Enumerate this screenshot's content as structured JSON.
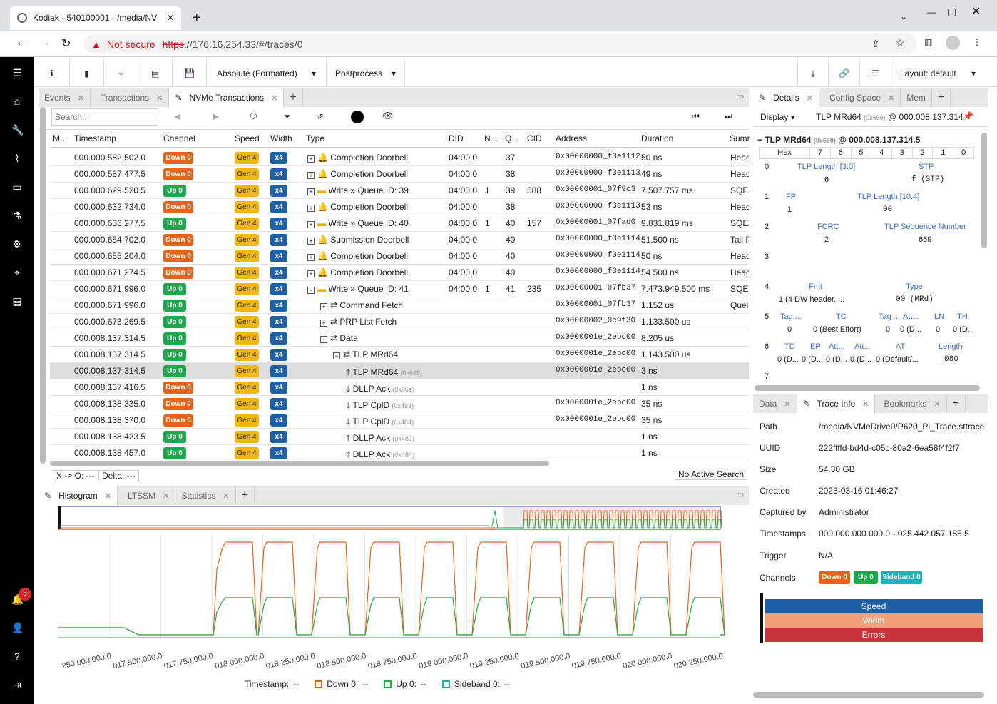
{
  "browser": {
    "tab_title": "Kodiak - 540100001 - /media/NV",
    "not_secure": "Not secure",
    "url_https": "https",
    "url_rest": "://176.16.254.33/#/traces/0"
  },
  "sidebar": {
    "notification_count": "6"
  },
  "toolbar": {
    "time_format": "Absolute (Formatted)",
    "postprocess": "Postprocess",
    "layout": "Layout: default"
  },
  "main_tabs": [
    {
      "label": "Events"
    },
    {
      "label": "Transactions"
    },
    {
      "label": "NVMe Transactions"
    }
  ],
  "search": {
    "placeholder": "Search..."
  },
  "columns": [
    "M...",
    "Timestamp",
    "Channel",
    "Speed",
    "Width",
    "Type",
    "DID",
    "N...",
    "Q...",
    "CID",
    "Address",
    "Duration",
    "Sumr"
  ],
  "rows": [
    {
      "ts": "000.000.582.502.0",
      "ch": "Down 0",
      "sp": "Gen 4",
      "w": "x4",
      "type": "Completion Doorbell",
      "did": "04:00.0",
      "n": "",
      "q": "37",
      "cid": "",
      "addr": "0x00000000_f3e1112",
      "dur": "50 ns",
      "sum": "Heac"
    },
    {
      "ts": "000.000.587.477.5",
      "ch": "Down 0",
      "sp": "Gen 4",
      "w": "x4",
      "type": "Completion Doorbell",
      "did": "04:00.0",
      "n": "",
      "q": "38",
      "cid": "",
      "addr": "0x00000000_f3e1113",
      "dur": "49 ns",
      "sum": "Heac"
    },
    {
      "ts": "000.000.629.520.5",
      "ch": "Up 0",
      "sp": "Gen 4",
      "w": "x4",
      "type": "Write » Queue ID: 39",
      "did": "04:00.0",
      "n": "1",
      "q": "39",
      "cid": "588",
      "addr": "0x00000001_07f9c3",
      "dur": "7.507.757 ms",
      "sum": "SQE:"
    },
    {
      "ts": "000.000.632.734.0",
      "ch": "Down 0",
      "sp": "Gen 4",
      "w": "x4",
      "type": "Completion Doorbell",
      "did": "04:00.0",
      "n": "",
      "q": "38",
      "cid": "",
      "addr": "0x00000000_f3e1113",
      "dur": "53 ns",
      "sum": "Heac"
    },
    {
      "ts": "000.000.636.277.5",
      "ch": "Up 0",
      "sp": "Gen 4",
      "w": "x4",
      "type": "Write » Queue ID: 40",
      "did": "04:00.0",
      "n": "1",
      "q": "40",
      "cid": "157",
      "addr": "0x00000001_07fad0",
      "dur": "9.831.819 ms",
      "sum": "SQE:"
    },
    {
      "ts": "000.000.654.702.0",
      "ch": "Down 0",
      "sp": "Gen 4",
      "w": "x4",
      "type": "Submission Doorbell",
      "did": "04:00.0",
      "n": "",
      "q": "40",
      "cid": "",
      "addr": "0x00000000_f3e1114",
      "dur": "51.500 ns",
      "sum": "Tail P"
    },
    {
      "ts": "000.000.655.204.0",
      "ch": "Down 0",
      "sp": "Gen 4",
      "w": "x4",
      "type": "Completion Doorbell",
      "did": "04:00.0",
      "n": "",
      "q": "40",
      "cid": "",
      "addr": "0x00000000_f3e1114",
      "dur": "50 ns",
      "sum": "Heac"
    },
    {
      "ts": "000.000.671.274.5",
      "ch": "Down 0",
      "sp": "Gen 4",
      "w": "x4",
      "type": "Completion Doorbell",
      "did": "04:00.0",
      "n": "",
      "q": "40",
      "cid": "",
      "addr": "0x00000000_f3e1114",
      "dur": "54.500 ns",
      "sum": "Heac"
    },
    {
      "ts": "000.000.671.996.0",
      "ch": "Up 0",
      "sp": "Gen 4",
      "w": "x4",
      "type": "Write » Queue ID: 41",
      "did": "04:00.0",
      "n": "1",
      "q": "41",
      "cid": "235",
      "addr": "0x00000001_07fb37",
      "dur": "7.473.949.500 ms",
      "sum": "SQE:"
    },
    {
      "ts": "000.000.671.996.0",
      "ch": "Up 0",
      "sp": "Gen 4",
      "w": "x4",
      "type": "Command Fetch",
      "did": "",
      "n": "",
      "q": "",
      "cid": "",
      "addr": "0x00000001_07fb37",
      "dur": "1.152 us",
      "sum": "Quei"
    },
    {
      "ts": "000.000.673.269.5",
      "ch": "Up 0",
      "sp": "Gen 4",
      "w": "x4",
      "type": "PRP List Fetch",
      "did": "",
      "n": "",
      "q": "",
      "cid": "",
      "addr": "0x00000002_0c9f30",
      "dur": "1.133.500 us",
      "sum": ""
    },
    {
      "ts": "000.008.137.314.5",
      "ch": "Up 0",
      "sp": "Gen 4",
      "w": "x4",
      "type": "Data",
      "did": "",
      "n": "",
      "q": "",
      "cid": "",
      "addr": "0x0000001e_2ebc00",
      "dur": "8.205 us",
      "sum": ""
    },
    {
      "ts": "000.008.137.314.5",
      "ch": "Up 0",
      "sp": "Gen 4",
      "w": "x4",
      "type": "TLP MRd64",
      "did": "",
      "n": "",
      "q": "",
      "cid": "",
      "addr": "0x0000001e_2ebc00",
      "dur": "1.143.500 us",
      "sum": ""
    },
    {
      "ts": "000.008.137.314.5",
      "ch": "Up 0",
      "sp": "Gen 4",
      "w": "x4",
      "type": "TLP MRd64",
      "sub": "(0x669)",
      "did": "",
      "n": "",
      "q": "",
      "cid": "",
      "addr": "0x0000001e_2ebc00",
      "dur": "3 ns",
      "sum": ""
    },
    {
      "ts": "000.008.137.416.5",
      "ch": "Down 0",
      "sp": "Gen 4",
      "w": "x4",
      "type": "DLLP Ack",
      "sub": "(0x66a)",
      "did": "",
      "n": "",
      "q": "",
      "cid": "",
      "addr": "",
      "dur": "1 ns",
      "sum": ""
    },
    {
      "ts": "000.008.138.335.0",
      "ch": "Down 0",
      "sp": "Gen 4",
      "w": "x4",
      "type": "TLP CplD",
      "sub": "(0x483)",
      "did": "",
      "n": "",
      "q": "",
      "cid": "",
      "addr": "0x0000001e_2ebc00",
      "dur": "35 ns",
      "sum": ""
    },
    {
      "ts": "000.008.138.370.0",
      "ch": "Down 0",
      "sp": "Gen 4",
      "w": "x4",
      "type": "TLP CplD",
      "sub": "(0x484)",
      "did": "",
      "n": "",
      "q": "",
      "cid": "",
      "addr": "0x0000001e_2ebc00",
      "dur": "35 ns",
      "sum": ""
    },
    {
      "ts": "000.008.138.423.5",
      "ch": "Up 0",
      "sp": "Gen 4",
      "w": "x4",
      "type": "DLLP Ack",
      "sub": "(0x483)",
      "did": "",
      "n": "",
      "q": "",
      "cid": "",
      "addr": "",
      "dur": "1 ns",
      "sum": ""
    },
    {
      "ts": "000.008.138.457.0",
      "ch": "Up 0",
      "sp": "Gen 4",
      "w": "x4",
      "type": "DLLP Ack",
      "sub": "(0x484)",
      "did": "",
      "n": "",
      "q": "",
      "cid": "",
      "addr": "",
      "dur": "1 ns",
      "sum": ""
    }
  ],
  "status": {
    "xo": "X -> O: ---",
    "delta": "Delta: ---",
    "search": "No Active Search"
  },
  "bottom_tabs": [
    {
      "label": "Histogram"
    },
    {
      "label": "LTSSM"
    },
    {
      "label": "Statistics"
    }
  ],
  "chart_data": {
    "type": "line",
    "x_ticks": [
      "250.000.000.0",
      "017.500.000.0",
      "017.750.000.0",
      "018.000.000.0",
      "018.250.000.0",
      "018.500.000.0",
      "018.750.000.0",
      "019.000.000.0",
      "019.250.000.0",
      "019.500.000.0",
      "019.750.000.0",
      "020.000.000.0",
      "020.250.000.0"
    ],
    "legend": {
      "timestamp": "Timestamp:",
      "down": "Down 0:",
      "up": "Up 0:",
      "sideband": "Sideband 0:",
      "blank": "--"
    }
  },
  "details": {
    "tabs": [
      "Details",
      "Config Space",
      "Mem"
    ],
    "display": "Display",
    "header_short": "TLP MRd64",
    "header_id": "(0x669)",
    "header_addr": "@ 000.008.137.314.5",
    "tlp_title": "TLP MRd64",
    "tlp_id": "(0x669)",
    "tlp_addr": "@ 000.008.137.314.5",
    "hex": "Hex",
    "bits": [
      "7",
      "6",
      "5",
      "4",
      "3",
      "2",
      "1",
      "0"
    ]
  },
  "info": {
    "tabs": [
      "Data",
      "Trace Info",
      "Bookmarks"
    ],
    "path_l": "Path",
    "path_v": "/media/NVMeDrive0/P620_Pi_Trace.sttrace",
    "uuid_l": "UUID",
    "uuid_v": "222ffffd-bd4d-c05c-80a2-6ea58f4f2f7",
    "size_l": "Size",
    "size_v": "54.30 GB",
    "created_l": "Created",
    "created_v": "2023-03-16 01:46:27",
    "capby_l": "Captured by",
    "capby_v": "Administrator",
    "ts_l": "Timestamps",
    "ts_v": "000.000.000.000.0 - 025.442.057.185.5",
    "trig_l": "Trigger",
    "trig_v": "N/A",
    "ch_l": "Channels",
    "ch_down": "Down 0",
    "ch_up": "Up 0",
    "ch_side": "Sideband 0",
    "speed": "Speed",
    "width": "Width",
    "errors": "Errors"
  }
}
